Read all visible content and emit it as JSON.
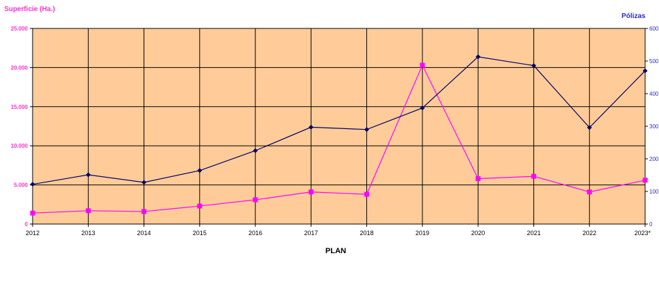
{
  "chart_data": {
    "type": "line",
    "categories": [
      "2012",
      "2013",
      "2014",
      "2015",
      "2016",
      "2017",
      "2018",
      "2019",
      "2020",
      "2021",
      "2022",
      "2023*"
    ],
    "xlabel": "PLAN",
    "y_left": {
      "label": "Superficie (Ha.)",
      "ylim": [
        0,
        25000
      ],
      "ticks": [
        "0",
        "5.000",
        "10.000",
        "15.000",
        "20.000",
        "25.000"
      ],
      "color": "#ff33cc"
    },
    "y_right": {
      "label": "Pólizas",
      "ylim": [
        0,
        600
      ],
      "ticks": [
        "0",
        "100",
        "200",
        "300",
        "400",
        "500",
        "600"
      ],
      "color": "#2a2acc"
    },
    "series": [
      {
        "axis": "left",
        "color": "#ff00ff",
        "marker": "square",
        "values": [
          1400,
          1700,
          1600,
          2300,
          3100,
          4100,
          3800,
          20300,
          5800,
          6100,
          4100,
          5600
        ]
      },
      {
        "axis": "right",
        "color": "#000066",
        "marker": "diamond",
        "values": [
          122,
          151,
          128,
          164,
          225,
          297,
          290,
          356,
          513,
          486,
          296,
          470
        ]
      }
    ],
    "grid": true,
    "plot_background": "#ffcc99"
  }
}
